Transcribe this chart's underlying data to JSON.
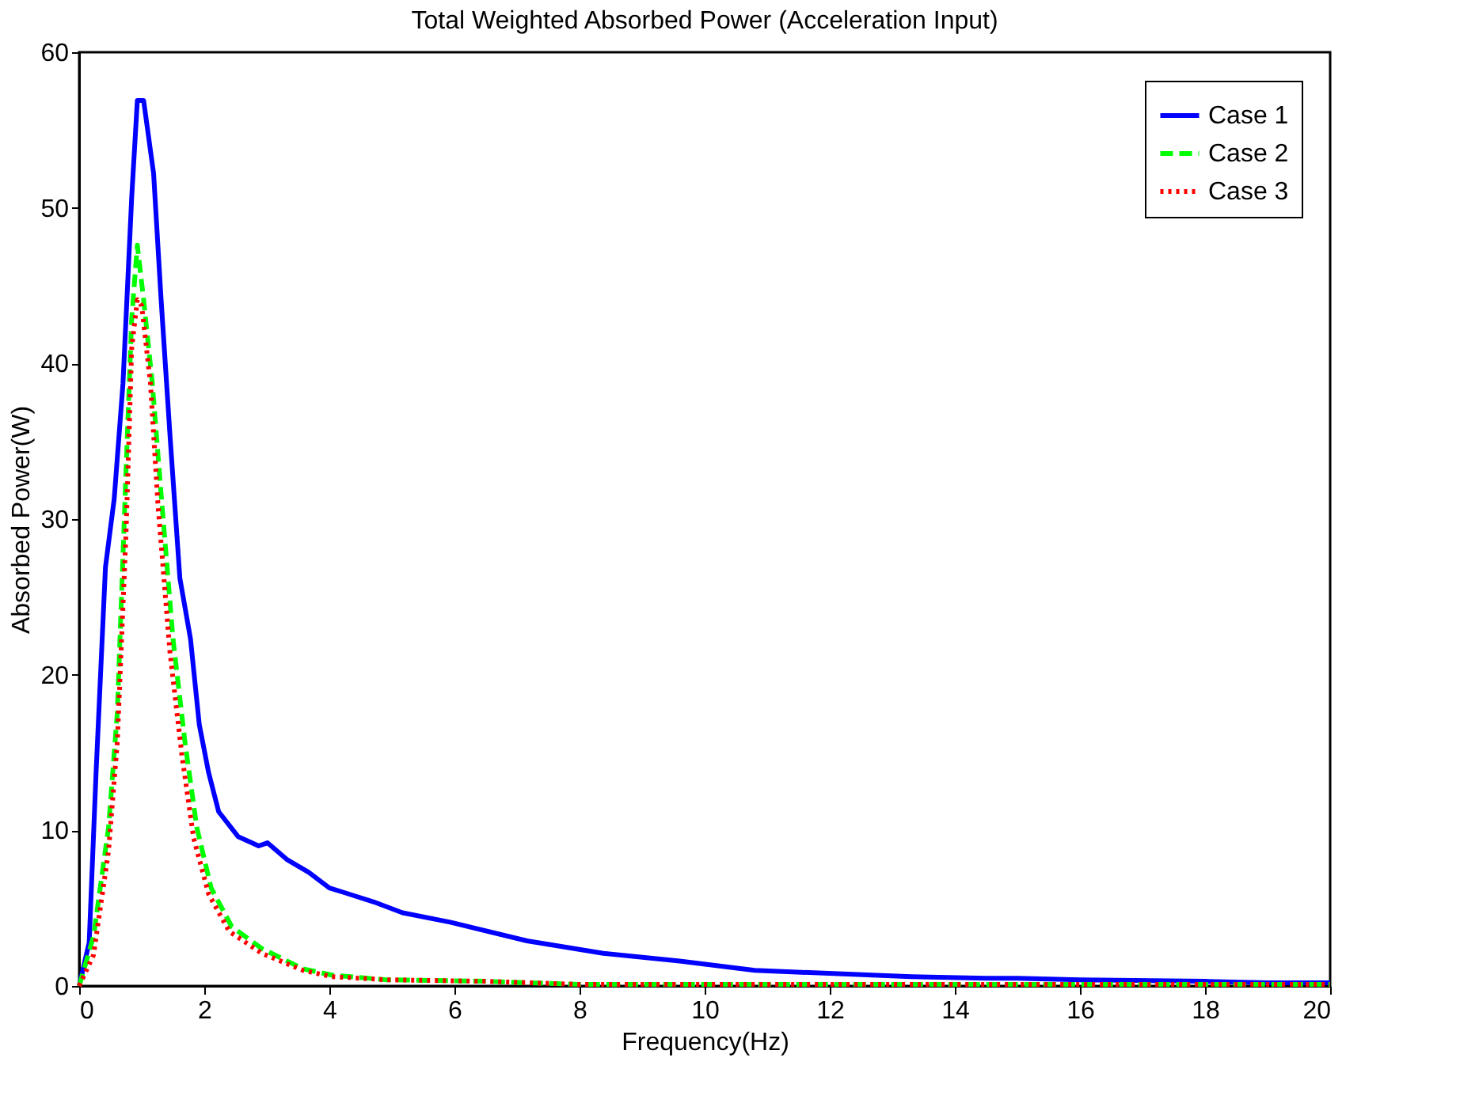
{
  "chart_data": {
    "type": "line",
    "title": "Total Weighted Absorbed Power (Acceleration Input)",
    "xlabel": "Frequency(Hz)",
    "ylabel": "Absorbed Power(W)",
    "xlim": [
      0,
      20
    ],
    "xticks": [
      0,
      2,
      4,
      6,
      8,
      10,
      12,
      14,
      16,
      18,
      20
    ],
    "ylim": [
      0,
      60
    ],
    "yticks": [
      0,
      10,
      20,
      30,
      40,
      50,
      60
    ],
    "grid": false,
    "legend": "top right",
    "marker": "none",
    "series": [
      {
        "name": "Case 1",
        "color": "#0000ff",
        "line_style": "solid",
        "x": [
          0,
          0.16,
          0.27,
          0.42,
          0.56,
          0.7,
          0.84,
          0.93,
          1.03,
          1.19,
          1.31,
          1.45,
          1.61,
          1.78,
          1.92,
          2.07,
          2.23,
          2.54,
          2.87,
          3.01,
          3.33,
          3.67,
          4.0,
          4.24,
          4.71,
          5.17,
          5.93,
          7.16,
          8.38,
          9.6,
          10.8,
          12.06,
          13.3,
          14.5,
          15.0,
          16.0,
          18.0,
          19.0,
          20.0
        ],
        "values": [
          0,
          2.8,
          13.7,
          26.9,
          31.3,
          38.7,
          50.7,
          56.9,
          56.9,
          52.2,
          44.1,
          35.5,
          26.2,
          22.3,
          16.8,
          13.7,
          11.2,
          9.6,
          9.0,
          9.2,
          8.1,
          7.3,
          6.3,
          6.0,
          5.4,
          4.7,
          4.1,
          2.9,
          2.1,
          1.6,
          1.0,
          0.8,
          0.6,
          0.5,
          0.5,
          0.4,
          0.3,
          0.2,
          0.2
        ]
      },
      {
        "name": "Case 2",
        "color": "#00ff00",
        "line_style": "dashed",
        "x": [
          0,
          0.23,
          0.47,
          0.61,
          0.75,
          0.84,
          0.93,
          1.03,
          1.17,
          1.31,
          1.5,
          1.69,
          1.88,
          2.11,
          2.44,
          2.92,
          3.58,
          4.04,
          4.9,
          6.5,
          8.0,
          20.0
        ],
        "values": [
          0,
          3.2,
          10.2,
          17.6,
          33.2,
          42.9,
          47.6,
          44.1,
          38.7,
          31.6,
          22.3,
          15.7,
          10.2,
          6.3,
          3.8,
          2.4,
          1.1,
          0.7,
          0.4,
          0.3,
          0.1,
          0.1
        ]
      },
      {
        "name": "Case 3",
        "color": "#ff0000",
        "line_style": "dotted",
        "x": [
          0,
          0.23,
          0.47,
          0.61,
          0.75,
          0.84,
          0.93,
          1.0,
          1.14,
          1.26,
          1.45,
          1.64,
          1.83,
          2.07,
          2.4,
          2.92,
          3.58,
          4.04,
          4.9,
          6.5,
          8.0,
          20.0
        ],
        "values": [
          0,
          2.0,
          8.7,
          15.7,
          29.2,
          41.0,
          44.1,
          43.7,
          38.7,
          30.9,
          21.5,
          14.9,
          9.5,
          5.9,
          3.5,
          2.1,
          1.0,
          0.6,
          0.4,
          0.3,
          0.1,
          0.1
        ]
      }
    ]
  }
}
